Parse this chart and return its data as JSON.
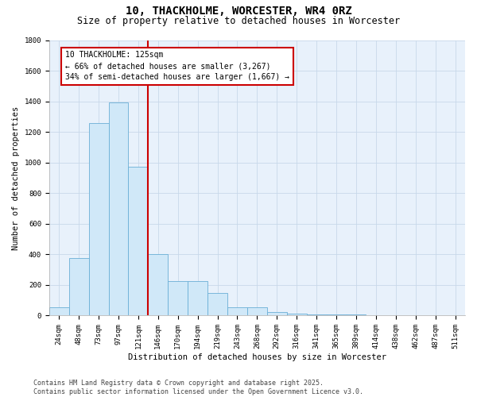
{
  "title": "10, THACKHOLME, WORCESTER, WR4 0RZ",
  "subtitle": "Size of property relative to detached houses in Worcester",
  "xlabel": "Distribution of detached houses by size in Worcester",
  "ylabel": "Number of detached properties",
  "categories": [
    "24sqm",
    "48sqm",
    "73sqm",
    "97sqm",
    "121sqm",
    "146sqm",
    "170sqm",
    "194sqm",
    "219sqm",
    "243sqm",
    "268sqm",
    "292sqm",
    "316sqm",
    "341sqm",
    "365sqm",
    "389sqm",
    "414sqm",
    "438sqm",
    "462sqm",
    "487sqm",
    "511sqm"
  ],
  "values": [
    55,
    375,
    1260,
    1395,
    975,
    405,
    225,
    225,
    150,
    55,
    55,
    25,
    15,
    8,
    8,
    8,
    5,
    4,
    2,
    2,
    1
  ],
  "bar_color": "#d0e8f8",
  "bar_edge_color": "#6aafd6",
  "property_line_index": 4,
  "property_line_color": "#cc0000",
  "ylim": [
    0,
    1800
  ],
  "yticks": [
    0,
    200,
    400,
    600,
    800,
    1000,
    1200,
    1400,
    1600,
    1800
  ],
  "annotation_text": "10 THACKHOLME: 125sqm\n← 66% of detached houses are smaller (3,267)\n34% of semi-detached houses are larger (1,667) →",
  "annotation_box_facecolor": "#ffffff",
  "annotation_box_edgecolor": "#cc0000",
  "grid_color": "#c8d8ea",
  "plot_bg_color": "#e8f1fb",
  "fig_bg_color": "#ffffff",
  "footer_text": "Contains HM Land Registry data © Crown copyright and database right 2025.\nContains public sector information licensed under the Open Government Licence v3.0.",
  "title_fontsize": 10,
  "subtitle_fontsize": 8.5,
  "axis_label_fontsize": 7.5,
  "tick_fontsize": 6.5,
  "annotation_fontsize": 7,
  "footer_fontsize": 6
}
